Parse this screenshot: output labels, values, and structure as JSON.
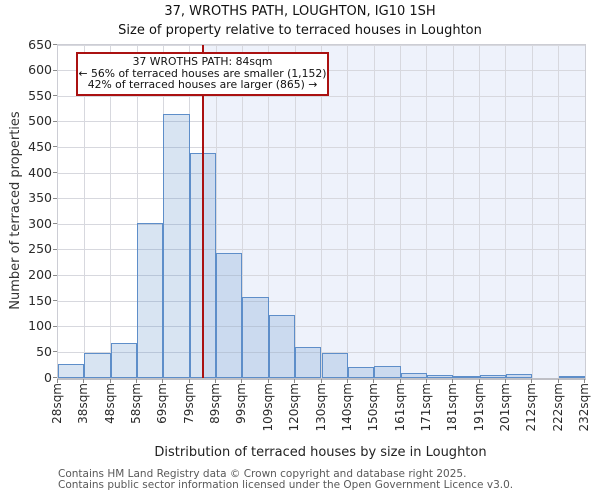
{
  "title": "37, WROTHS PATH, LOUGHTON, IG10 1SH",
  "subtitle": "Size of property relative to terraced houses in Loughton",
  "annotation": {
    "line1": "37 WROTHS PATH: 84sqm",
    "line2": "← 56% of terraced houses are smaller (1,152)",
    "line3": "42% of terraced houses are larger (865) →"
  },
  "chart_data": {
    "type": "bar",
    "title": "37, WROTHS PATH, LOUGHTON, IG10 1SH",
    "subtitle": "Size of property relative to terraced houses in Loughton",
    "xlabel": "Distribution of terraced houses by size in Loughton",
    "ylabel": "Number of terraced properties",
    "bin_edges_sqm": [
      28,
      38,
      48,
      58,
      69,
      79,
      89,
      99,
      109,
      120,
      130,
      140,
      150,
      161,
      171,
      181,
      191,
      201,
      212,
      222,
      232
    ],
    "tick_labels": [
      "28sqm",
      "38sqm",
      "48sqm",
      "58sqm",
      "69sqm",
      "79sqm",
      "89sqm",
      "99sqm",
      "109sqm",
      "120sqm",
      "130sqm",
      "140sqm",
      "150sqm",
      "161sqm",
      "171sqm",
      "181sqm",
      "191sqm",
      "201sqm",
      "212sqm",
      "222sqm",
      "232sqm"
    ],
    "values": [
      28,
      48,
      69,
      303,
      515,
      439,
      244,
      159,
      122,
      60,
      49,
      21,
      23,
      9,
      5,
      3,
      5,
      7,
      0,
      4
    ],
    "ylim": [
      0,
      650
    ],
    "ytick_step": 50,
    "grid": "on",
    "marker_value_sqm": 84,
    "marker_color": "#aa1111",
    "bar_fill_rgba": "rgba(94,142,201,0.24)",
    "bar_edge": "#5e8ec9",
    "shade_color": "#eef2fb",
    "grid_color": "#d7d8de"
  },
  "footer": {
    "line1": "Contains HM Land Registry data © Crown copyright and database right 2025.",
    "line2": "Contains public sector information licensed under the Open Government Licence v3.0."
  }
}
